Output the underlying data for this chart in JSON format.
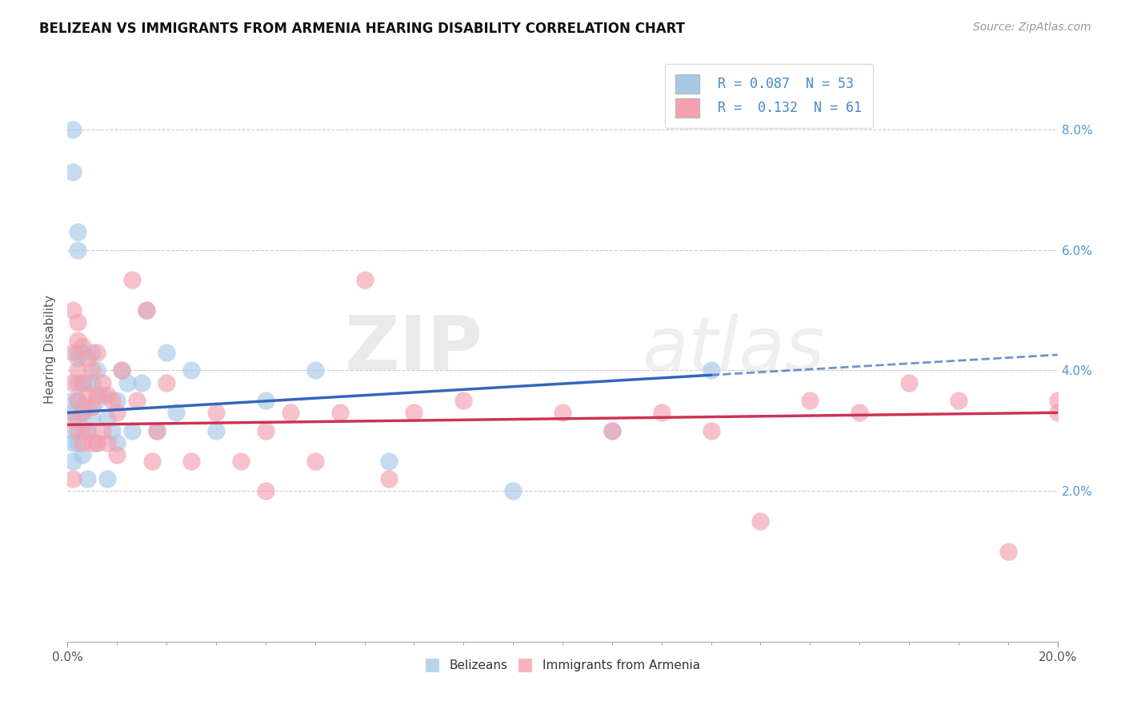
{
  "title": "BELIZEAN VS IMMIGRANTS FROM ARMENIA HEARING DISABILITY CORRELATION CHART",
  "source": "Source: ZipAtlas.com",
  "ylabel": "Hearing Disability",
  "xlim": [
    0.0,
    0.2
  ],
  "ylim": [
    -0.005,
    0.092
  ],
  "blue_R": "0.087",
  "blue_N": "53",
  "pink_R": "0.132",
  "pink_N": "61",
  "blue_color": "#a8c8e8",
  "pink_color": "#f4a0b0",
  "blue_line_color": "#3366bb",
  "pink_line_color": "#cc3355",
  "legend_label_blue": "Belizeans",
  "legend_label_pink": "Immigrants from Armenia",
  "blue_points_x": [
    0.001,
    0.001,
    0.001,
    0.001,
    0.001,
    0.002,
    0.002,
    0.002,
    0.002,
    0.002,
    0.002,
    0.002,
    0.003,
    0.003,
    0.003,
    0.003,
    0.003,
    0.004,
    0.004,
    0.004,
    0.005,
    0.005,
    0.005,
    0.006,
    0.006,
    0.006,
    0.007,
    0.008,
    0.008,
    0.009,
    0.01,
    0.01,
    0.011,
    0.012,
    0.013,
    0.015,
    0.016,
    0.018,
    0.02,
    0.022,
    0.025,
    0.03,
    0.04,
    0.05,
    0.065,
    0.09,
    0.11,
    0.13,
    0.001,
    0.001,
    0.002,
    0.003,
    0.004
  ],
  "blue_points_y": [
    0.08,
    0.073,
    0.033,
    0.03,
    0.028,
    0.063,
    0.06,
    0.043,
    0.038,
    0.035,
    0.032,
    0.028,
    0.043,
    0.038,
    0.034,
    0.03,
    0.026,
    0.038,
    0.034,
    0.03,
    0.043,
    0.038,
    0.032,
    0.04,
    0.035,
    0.028,
    0.036,
    0.032,
    0.022,
    0.03,
    0.035,
    0.028,
    0.04,
    0.038,
    0.03,
    0.038,
    0.05,
    0.03,
    0.043,
    0.033,
    0.04,
    0.03,
    0.035,
    0.04,
    0.025,
    0.02,
    0.03,
    0.04,
    0.035,
    0.025,
    0.042,
    0.033,
    0.022
  ],
  "pink_points_x": [
    0.001,
    0.001,
    0.001,
    0.001,
    0.002,
    0.002,
    0.002,
    0.002,
    0.003,
    0.003,
    0.003,
    0.003,
    0.004,
    0.004,
    0.004,
    0.005,
    0.005,
    0.005,
    0.006,
    0.006,
    0.006,
    0.007,
    0.007,
    0.008,
    0.008,
    0.009,
    0.01,
    0.01,
    0.011,
    0.013,
    0.014,
    0.016,
    0.017,
    0.018,
    0.02,
    0.025,
    0.03,
    0.035,
    0.04,
    0.04,
    0.045,
    0.05,
    0.055,
    0.06,
    0.065,
    0.07,
    0.08,
    0.1,
    0.11,
    0.12,
    0.13,
    0.14,
    0.15,
    0.16,
    0.17,
    0.18,
    0.19,
    0.2,
    0.2,
    0.001,
    0.002
  ],
  "pink_points_y": [
    0.05,
    0.043,
    0.038,
    0.032,
    0.048,
    0.04,
    0.035,
    0.03,
    0.044,
    0.038,
    0.033,
    0.028,
    0.042,
    0.036,
    0.03,
    0.04,
    0.034,
    0.028,
    0.043,
    0.036,
    0.028,
    0.038,
    0.03,
    0.036,
    0.028,
    0.035,
    0.033,
    0.026,
    0.04,
    0.055,
    0.035,
    0.05,
    0.025,
    0.03,
    0.038,
    0.025,
    0.033,
    0.025,
    0.03,
    0.02,
    0.033,
    0.025,
    0.033,
    0.055,
    0.022,
    0.033,
    0.035,
    0.033,
    0.03,
    0.033,
    0.03,
    0.015,
    0.035,
    0.033,
    0.038,
    0.035,
    0.01,
    0.035,
    0.033,
    0.022,
    0.045
  ],
  "grid_color": "#cccccc",
  "background_color": "#ffffff",
  "watermark_zip": "ZIP",
  "watermark_atlas": "atlas"
}
